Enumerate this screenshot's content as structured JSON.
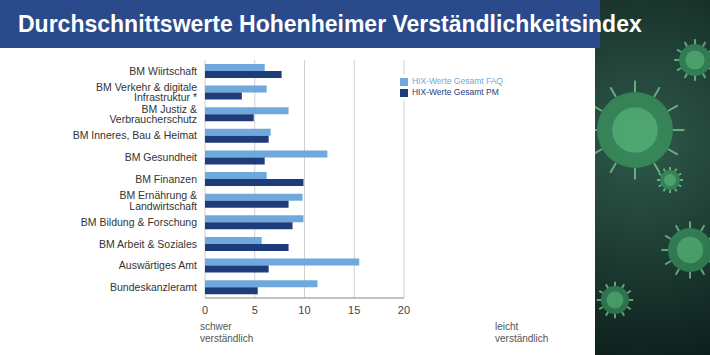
{
  "chart_data": {
    "type": "bar",
    "title": "Durchschnittswerte Hohenheimer Verständlichkeitsindex",
    "orientation": "horizontal",
    "categories": [
      "BM Wiirtschaft",
      "BM Verkehr & digitale Infrastruktur *",
      "BM Justiz & Verbraucherschutz",
      "BM Inneres, Bau & Heimat",
      "BM Gesundheit",
      "BM Finanzen",
      "BM Ernährung & Landwirtschaft",
      "BM Bildung & Forschung",
      "BM Arbeit & Soziales",
      "Auswärtiges Amt",
      "Bundeskanzleramt"
    ],
    "series": [
      {
        "name": "HIX-Werte Gesamt FAQ",
        "color": "#6fa8dc",
        "values": [
          6.0,
          6.2,
          8.4,
          6.6,
          12.3,
          6.2,
          9.8,
          9.9,
          5.7,
          15.5,
          11.3
        ]
      },
      {
        "name": "HIX-Werte Gesamt PM",
        "color": "#1f3c7a",
        "values": [
          7.7,
          3.7,
          4.9,
          6.4,
          6.0,
          9.9,
          8.4,
          8.8,
          8.4,
          6.4,
          5.3
        ]
      }
    ],
    "xlim": [
      0,
      20
    ],
    "xticks": [
      0,
      5,
      10,
      15,
      20
    ],
    "grid": true,
    "legend": "upper right",
    "annotations": [
      "schwer verständlich",
      "leicht verständlich"
    ]
  }
}
